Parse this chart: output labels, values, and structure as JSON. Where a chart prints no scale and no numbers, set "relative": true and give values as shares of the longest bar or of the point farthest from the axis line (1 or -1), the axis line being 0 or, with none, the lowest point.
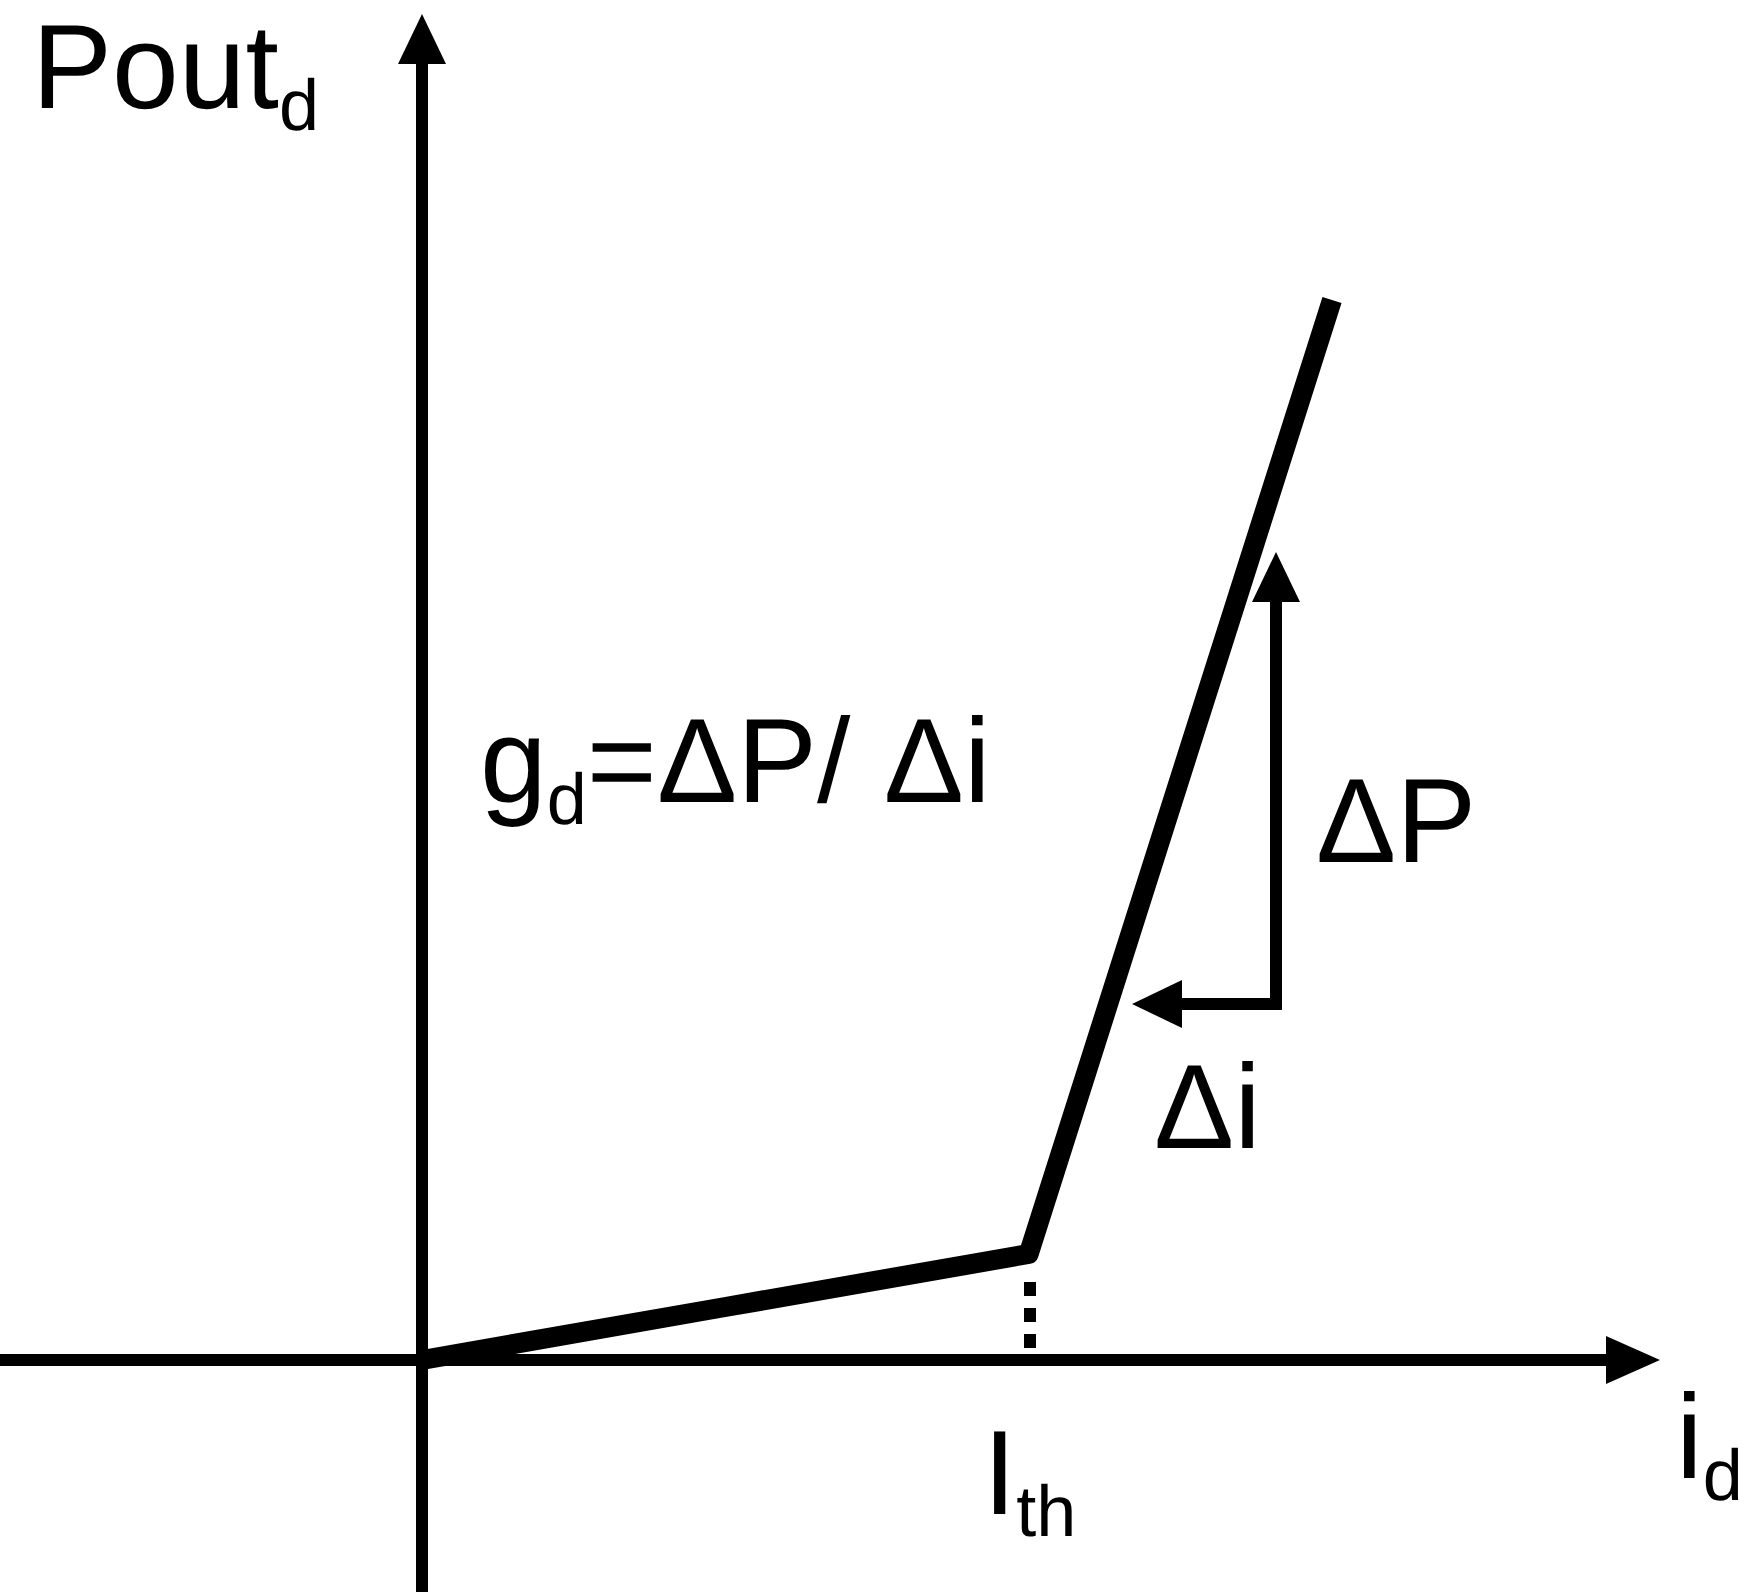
{
  "chart_data": {
    "type": "line",
    "relative": true,
    "xlabel": "i$_{d}$",
    "ylabel": "Pout$_{d}$",
    "categories": [
      null,
      null,
      null,
      null
    ],
    "series": [
      {
        "color": "#000000",
        "values": [
          0,
          0.05,
          0.1,
          1
        ]
      }
    ],
    "annotations": [
      "g$_{d}$=ΔP/ Δi",
      "ΔP",
      "Δi",
      "I$_{th}$"
    ]
  }
}
